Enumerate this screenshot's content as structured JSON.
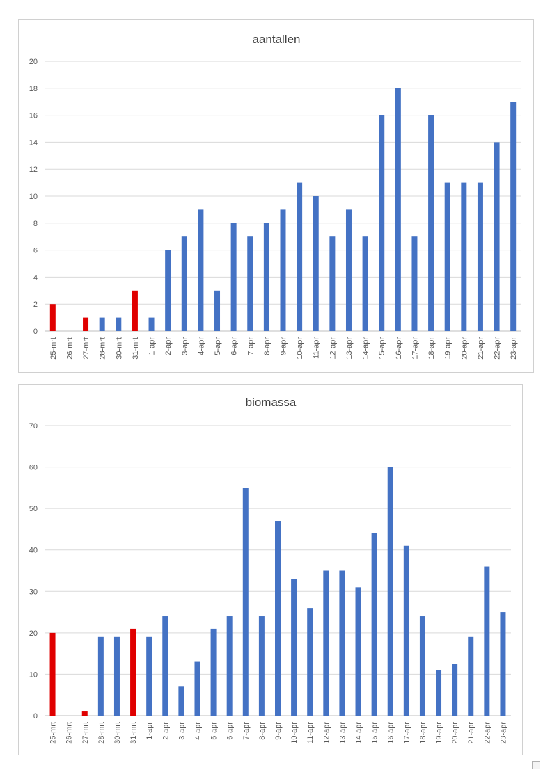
{
  "chart_data": [
    {
      "type": "bar",
      "title": "aantallen",
      "categories": [
        "25-mrt",
        "26-mrt",
        "27-mrt",
        "28-mrt",
        "30-mrt",
        "31-mrt",
        "1-apr",
        "2-apr",
        "3-apr",
        "4-apr",
        "5-apr",
        "6-apr",
        "7-apr",
        "8-apr",
        "9-apr",
        "10-apr",
        "11-apr",
        "12-apr",
        "13-apr",
        "14-apr",
        "15-apr",
        "16-apr",
        "17-apr",
        "18-apr",
        "19-apr",
        "20-apr",
        "21-apr",
        "22-apr",
        "23-apr"
      ],
      "values": [
        2,
        0,
        1,
        1,
        1,
        3,
        1,
        6,
        7,
        9,
        3,
        8,
        7,
        8,
        9,
        11,
        10,
        7,
        9,
        7,
        16,
        18,
        7,
        16,
        11,
        11,
        11,
        14,
        17
      ],
      "highlighted_categories": [
        "25-mrt",
        "26-mrt",
        "27-mrt",
        "31-mrt"
      ],
      "ylim": [
        0,
        20
      ],
      "yticks": [
        0,
        2,
        4,
        6,
        8,
        10,
        12,
        14,
        16,
        18,
        20
      ],
      "xlabel": "",
      "ylabel": "",
      "grid": true,
      "colors": {
        "default": "#4472c4",
        "highlight": "#e00000"
      }
    },
    {
      "type": "bar",
      "title": "biomassa",
      "categories": [
        "25-mrt",
        "26-mrt",
        "27-mrt",
        "28-mrt",
        "30-mrt",
        "31-mrt",
        "1-apr",
        "2-apr",
        "3-apr",
        "4-apr",
        "5-apr",
        "6-apr",
        "7-apr",
        "8-apr",
        "9-apr",
        "10-apr",
        "11-apr",
        "12-apr",
        "13-apr",
        "14-apr",
        "15-apr",
        "16-apr",
        "17-apr",
        "18-apr",
        "19-apr",
        "20-apr",
        "21-apr",
        "22-apr",
        "23-apr"
      ],
      "values": [
        20,
        0,
        1,
        19,
        19,
        21,
        19,
        24,
        7,
        13,
        21,
        24,
        55,
        24,
        47,
        33,
        26,
        35,
        35,
        31,
        44,
        60,
        41,
        24,
        11,
        12.5,
        19,
        36,
        25
      ],
      "highlighted_categories": [
        "25-mrt",
        "26-mrt",
        "27-mrt",
        "31-mrt"
      ],
      "ylim": [
        0,
        70
      ],
      "yticks": [
        0,
        10,
        20,
        30,
        40,
        50,
        60,
        70
      ],
      "xlabel": "",
      "ylabel": "",
      "grid": true,
      "colors": {
        "default": "#4472c4",
        "highlight": "#e00000"
      }
    }
  ]
}
